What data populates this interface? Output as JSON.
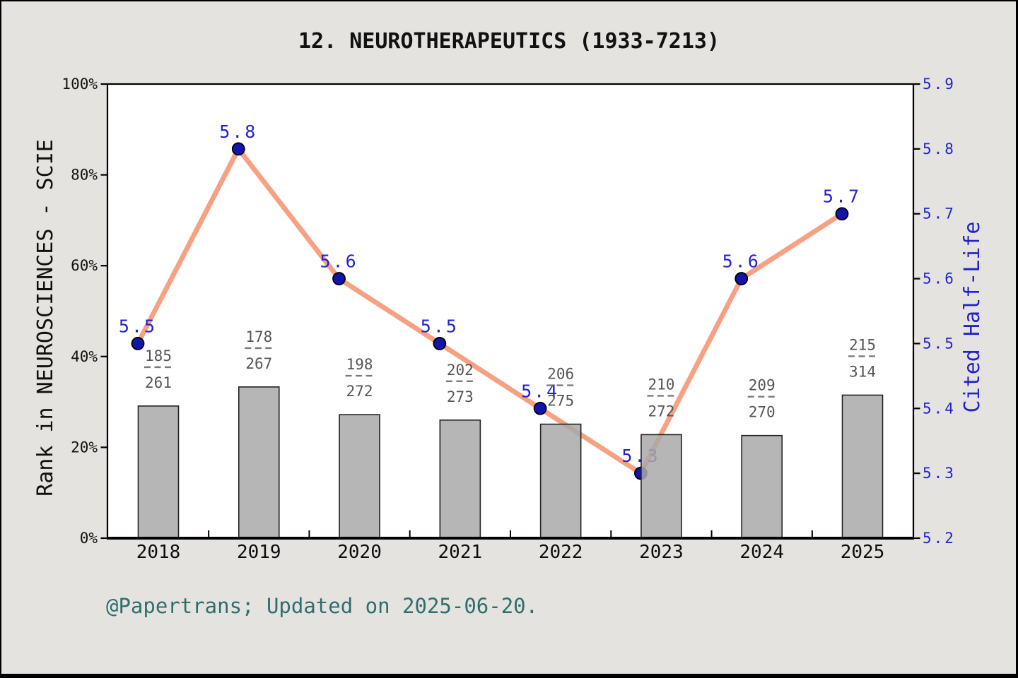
{
  "chart_data": {
    "type": "bar",
    "subtype": "bar-with-line-overlay-dual-axis",
    "title": "12. NEUROTHERAPEUTICS (1933-7213)",
    "footer": "@Papertrans; Updated on 2025-06-20.",
    "categories": [
      "2018",
      "2019",
      "2020",
      "2021",
      "2022",
      "2023",
      "2024",
      "2025"
    ],
    "bar_series": {
      "name": "Rank in NEUROSCIENCES - SCIE",
      "unit": "percent",
      "values": [
        29.1,
        33.3,
        27.2,
        26.0,
        25.1,
        22.8,
        22.6,
        31.5
      ],
      "fraction_labels": [
        {
          "numerator": "185",
          "denominator": "261"
        },
        {
          "numerator": "178",
          "denominator": "267"
        },
        {
          "numerator": "198",
          "denominator": "272"
        },
        {
          "numerator": "202",
          "denominator": "273"
        },
        {
          "numerator": "206",
          "denominator": "275"
        },
        {
          "numerator": "210",
          "denominator": "272"
        },
        {
          "numerator": "209",
          "denominator": "270"
        },
        {
          "numerator": "215",
          "denominator": "314"
        }
      ]
    },
    "line_series": {
      "name": "Cited Half-Life",
      "values": [
        5.5,
        5.8,
        5.6,
        5.5,
        5.4,
        5.3,
        5.6,
        5.7
      ],
      "point_labels": [
        "5.5",
        "5.8",
        "5.6",
        "5.5",
        "5.4",
        "5.3",
        "5.6",
        "5.7"
      ]
    },
    "left_axis": {
      "label": "Rank in NEUROSCIENCES - SCIE",
      "ticks": [
        "0%",
        "20%",
        "40%",
        "60%",
        "80%",
        "100%"
      ],
      "range": [
        0,
        100
      ]
    },
    "right_axis": {
      "label": "Cited Half-Life",
      "ticks": [
        "5.2",
        "5.3",
        "5.4",
        "5.5",
        "5.6",
        "5.7",
        "5.8",
        "5.9"
      ],
      "range": [
        5.2,
        5.9
      ]
    },
    "grid": false,
    "legend": "none",
    "colors": {
      "background": "#e5e3e0",
      "outer_border": "#000000",
      "plot_background": "#ffffff",
      "plot_border": "#000000",
      "bar_fill": "#a9a9a9",
      "bar_edge": "#222222",
      "line": "#f7a183",
      "point_fill": "#1313ad",
      "point_edge": "#000000",
      "point_value_label": "#2424cc",
      "right_axis_text": "#2222cc",
      "left_axis_text": "#111111",
      "fraction_label": "#555555",
      "fraction_dash": "#7a7a7a",
      "year_label": "#0d0d0d",
      "title": "#111111",
      "footer": "#2d6f6d"
    }
  }
}
